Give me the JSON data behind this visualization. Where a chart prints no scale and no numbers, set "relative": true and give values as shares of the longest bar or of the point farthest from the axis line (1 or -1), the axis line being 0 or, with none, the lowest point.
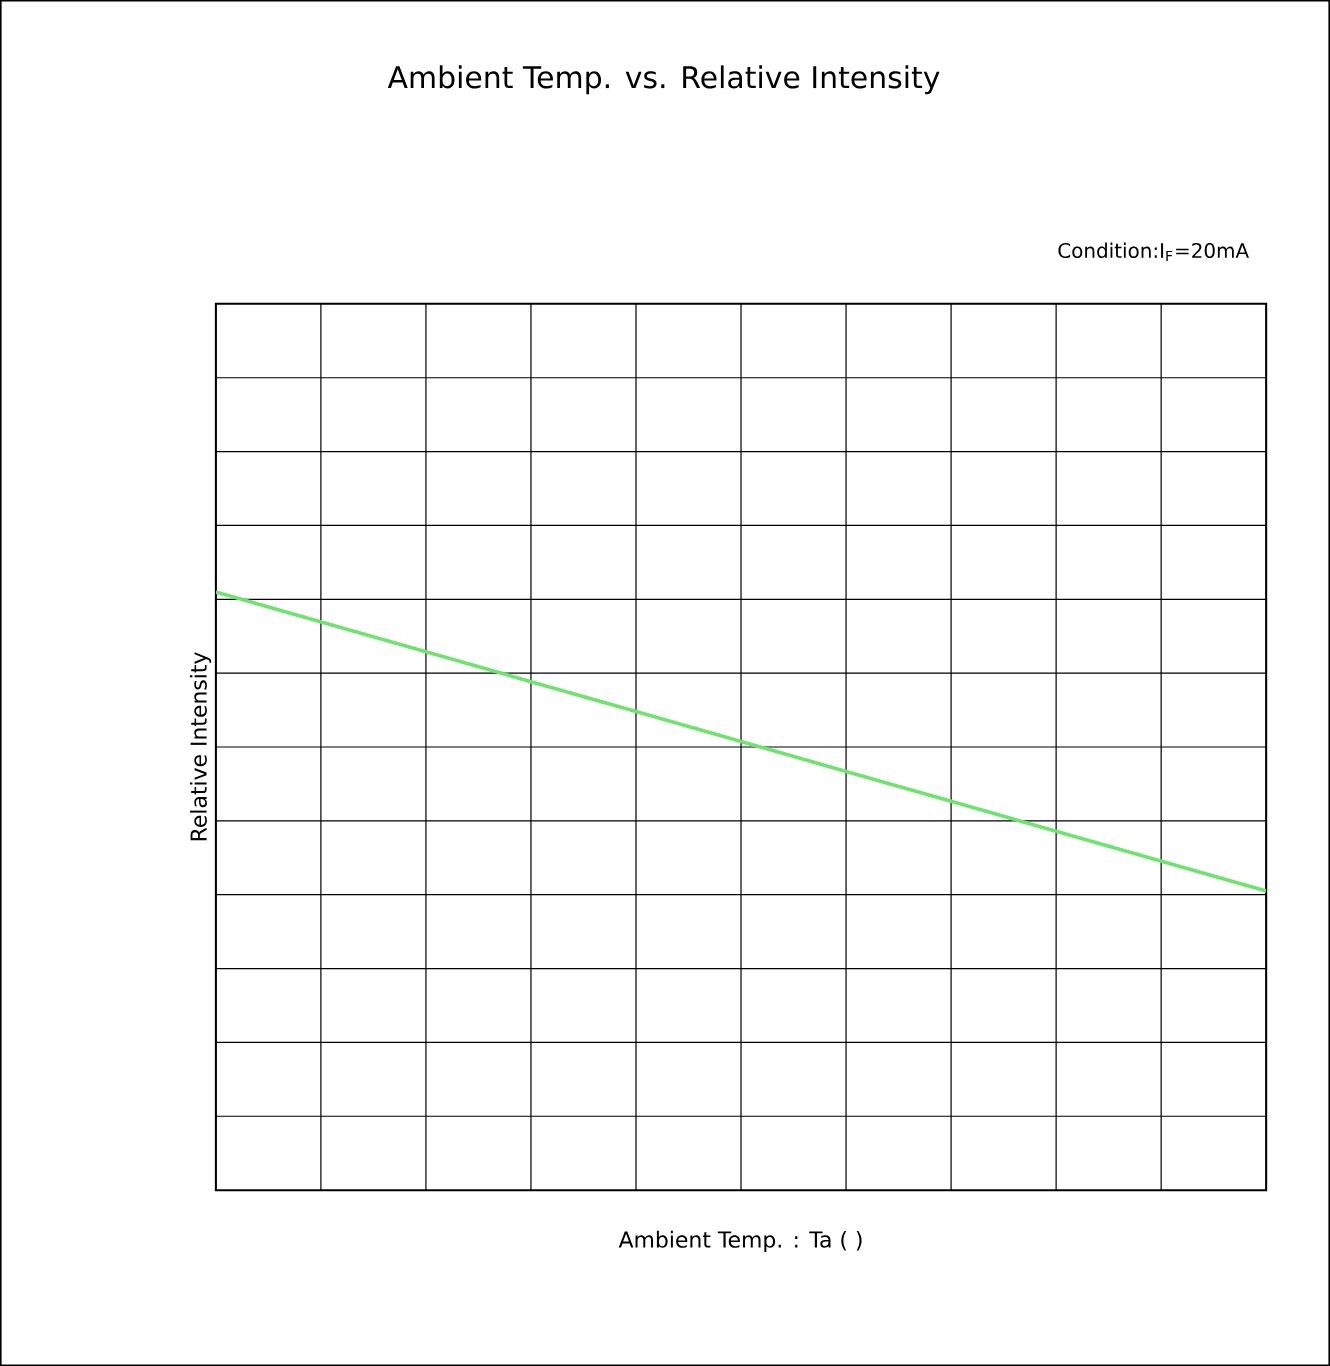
{
  "chart_data": {
    "type": "line",
    "title": "Ambient Temp. vs. Relative Intensity",
    "xlabel": "Ambient Temp. : Ta ( )",
    "ylabel": "Relative Intensity",
    "annotations": [
      "Condition:I$_{F}$=20mA"
    ],
    "categories": [
      null,
      null,
      null,
      null,
      null,
      null,
      null,
      null,
      null,
      null,
      null
    ],
    "series": [
      {
        "color": "#6ee46e",
        "values": [
          1.0,
          0.95,
          0.9,
          0.85,
          0.8,
          0.75,
          0.7,
          0.65,
          0.6,
          0.55,
          0.5
        ]
      }
    ],
    "relative": true,
    "grid": true,
    "marker": "none",
    "line_style": "solid"
  }
}
